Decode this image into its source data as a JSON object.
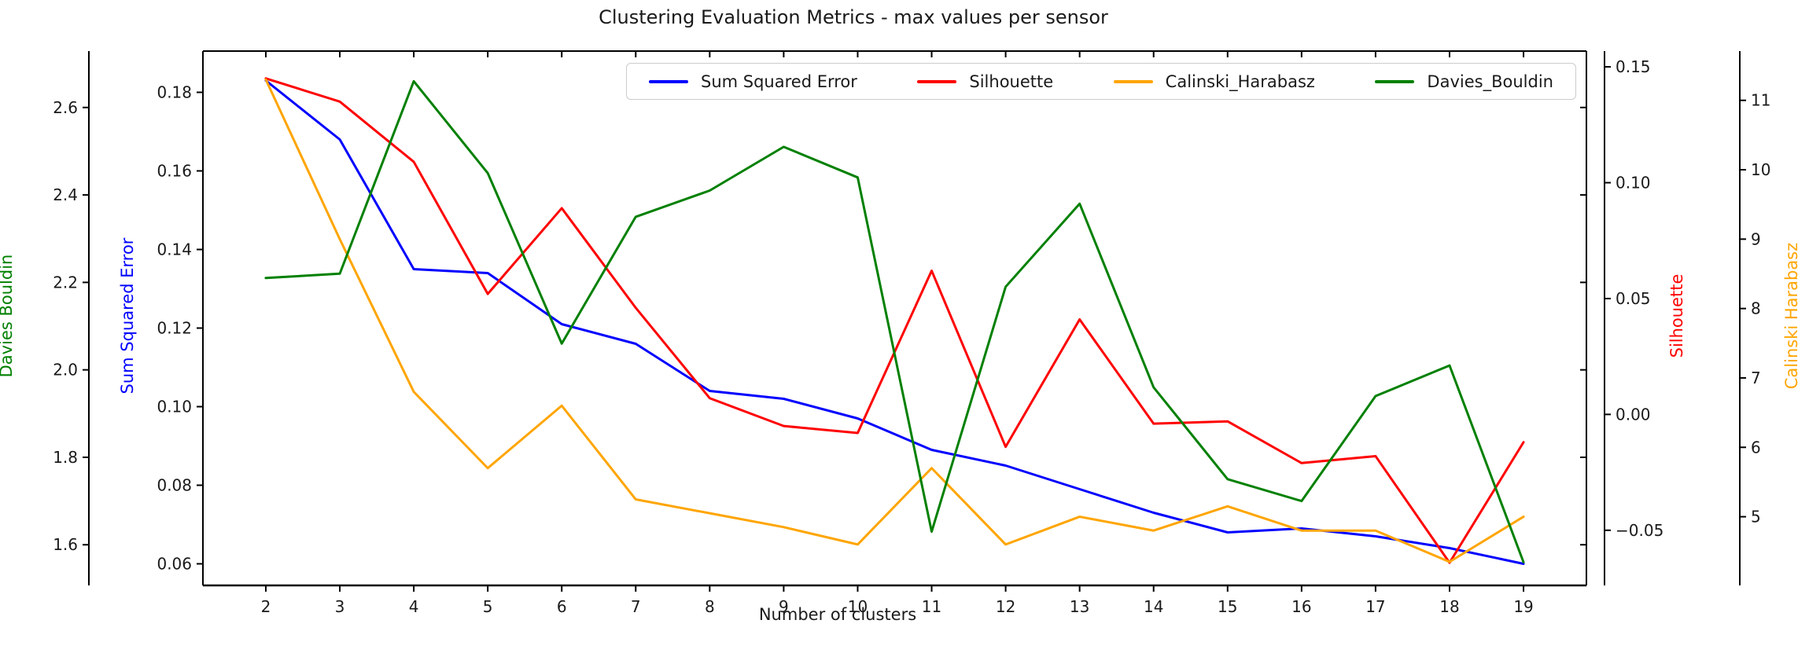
{
  "chart_data": {
    "type": "line",
    "title": "Clustering Evaluation Metrics - max values per sensor",
    "xlabel": "Number of clusters",
    "x": [
      2,
      3,
      4,
      5,
      6,
      7,
      8,
      9,
      10,
      11,
      12,
      13,
      14,
      15,
      16,
      17,
      18,
      19
    ],
    "xlim": [
      1.15,
      19.85
    ],
    "x_tick_labels": [
      "2",
      "3",
      "4",
      "5",
      "6",
      "7",
      "8",
      "9",
      "10",
      "11",
      "12",
      "13",
      "14",
      "15",
      "16",
      "17",
      "18",
      "19"
    ],
    "grid": false,
    "legend_position": "upper center inside plot",
    "series": [
      {
        "name": "Sum Squared Error",
        "color": "#0000ff",
        "axis": "sse",
        "values": [
          0.183,
          0.168,
          0.135,
          0.134,
          0.121,
          0.116,
          0.104,
          0.102,
          0.097,
          0.089,
          0.085,
          0.079,
          0.073,
          0.068,
          0.069,
          0.067,
          0.064,
          0.06
        ]
      },
      {
        "name": "Silhouette",
        "color": "#ff0000",
        "axis": "silhouette",
        "values": [
          0.145,
          0.135,
          0.109,
          0.052,
          0.089,
          0.046,
          0.007,
          -0.005,
          -0.008,
          0.062,
          -0.014,
          0.041,
          -0.004,
          -0.003,
          -0.021,
          -0.018,
          -0.064,
          -0.012
        ]
      },
      {
        "name": "Calinski_Harabasz",
        "color": "#ffa500",
        "axis": "calinski",
        "values": [
          11.3,
          9.0,
          6.8,
          5.7,
          6.6,
          5.25,
          5.05,
          4.85,
          4.6,
          5.7,
          4.6,
          5.0,
          4.8,
          5.15,
          4.8,
          4.8,
          4.35,
          5.0
        ]
      },
      {
        "name": "Davies_Bouldin",
        "color": "#008000",
        "axis": "davies",
        "values": [
          2.21,
          2.22,
          2.66,
          2.45,
          2.06,
          2.35,
          2.41,
          2.51,
          2.44,
          1.63,
          2.19,
          2.38,
          1.96,
          1.75,
          1.7,
          1.94,
          2.01,
          1.56
        ]
      }
    ],
    "axes": [
      {
        "id": "davies",
        "label": "Davies Bouldin",
        "color": "#008000",
        "side": "left-outer",
        "range": [
          1.507,
          2.729
        ],
        "tick_values": [
          1.6,
          1.8,
          2.0,
          2.2,
          2.4,
          2.6
        ],
        "tick_labels": [
          "1.6",
          "1.8",
          "2.0",
          "2.2",
          "2.4",
          "2.6"
        ]
      },
      {
        "id": "sse",
        "label": "Sum Squared Error",
        "color": "#0000ff",
        "side": "left",
        "range": [
          0.0545,
          0.1905
        ],
        "tick_values": [
          0.06,
          0.08,
          0.1,
          0.12,
          0.14,
          0.16,
          0.18
        ],
        "tick_labels": [
          "0.06",
          "0.08",
          "0.10",
          "0.12",
          "0.14",
          "0.16",
          "0.18"
        ]
      },
      {
        "id": "silhouette",
        "label": "Silhouette",
        "color": "#ff0000",
        "side": "right",
        "range": [
          -0.0738,
          0.1568
        ],
        "tick_values": [
          -0.05,
          0.0,
          0.05,
          0.1,
          0.15
        ],
        "tick_labels": [
          "−0.05",
          "0.00",
          "0.05",
          "0.10",
          "0.15"
        ]
      },
      {
        "id": "calinski",
        "label": "Calinski Harabasz",
        "color": "#ffa500",
        "side": "right-outer",
        "range": [
          4.01,
          11.71
        ],
        "tick_values": [
          5,
          6,
          7,
          8,
          9,
          10,
          11
        ],
        "tick_labels": [
          "5",
          "6",
          "7",
          "8",
          "9",
          "10",
          "11"
        ]
      }
    ]
  }
}
